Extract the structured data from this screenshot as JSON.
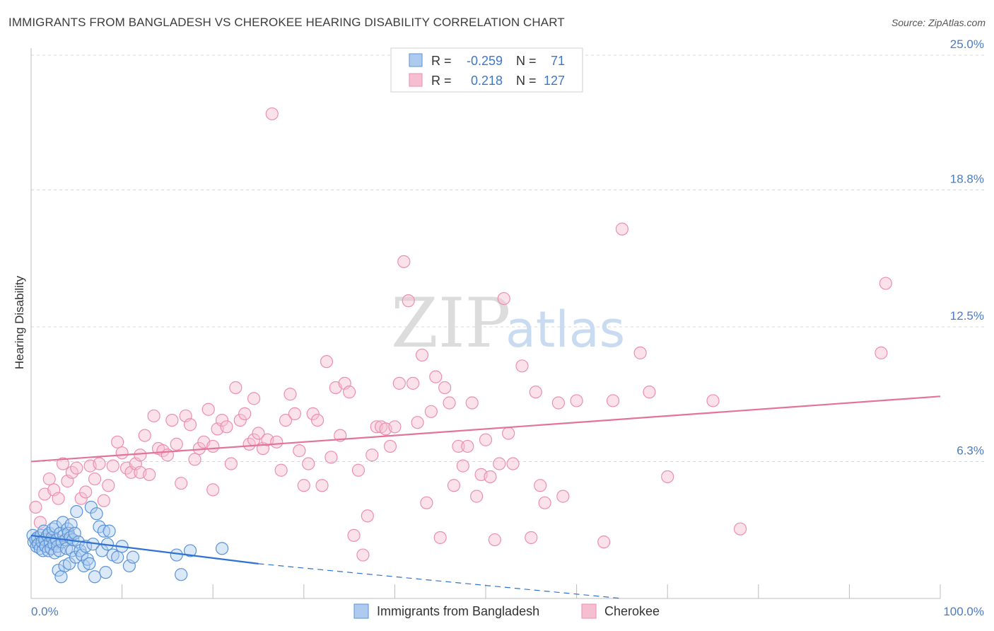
{
  "header": {
    "title": "IMMIGRANTS FROM BANGLADESH VS CHEROKEE HEARING DISABILITY CORRELATION CHART",
    "source": "Source: ZipAtlas.com"
  },
  "watermark": {
    "zip": "ZIP",
    "atlas": "atlas"
  },
  "stats": {
    "r_label": "R =",
    "n_label": "N =",
    "rows": [
      {
        "series": "Immigrants from Bangladesh",
        "r": "-0.259",
        "n": "71"
      },
      {
        "series": "Cherokee",
        "r": "0.218",
        "n": "127"
      }
    ]
  },
  "colors": {
    "blue_fill": "#aecbef",
    "blue_stroke": "#5b93d6",
    "blue_line": "#2f72cf",
    "pink_fill": "#f6bfd1",
    "pink_stroke": "#eb8fae",
    "pink_line": "#e2739a",
    "grid": "#d8d8d8"
  },
  "chart_data": {
    "type": "scatter",
    "title": "IMMIGRANTS FROM BANGLADESH VS CHEROKEE HEARING DISABILITY CORRELATION CHART",
    "xlabel": "",
    "ylabel": "Hearing Disability",
    "xlim": [
      0,
      100
    ],
    "ylim": [
      0,
      25.0
    ],
    "x_tick_labels": [
      "0.0%",
      "100.0%"
    ],
    "y_ticks": [
      6.3,
      12.5,
      18.8,
      25.0
    ],
    "y_tick_labels": [
      "6.3%",
      "12.5%",
      "18.8%",
      "25.0%"
    ],
    "legend": [
      "Immigrants from Bangladesh",
      "Cherokee"
    ],
    "series": [
      {
        "name": "Immigrants from Bangladesh",
        "trend": {
          "x": [
            0,
            25
          ],
          "y": [
            2.9,
            1.6
          ],
          "dashed_to": [
            65,
            0.0
          ]
        },
        "points": [
          [
            0.2,
            2.9
          ],
          [
            0.3,
            2.6
          ],
          [
            0.5,
            2.7
          ],
          [
            0.6,
            2.4
          ],
          [
            0.7,
            2.8
          ],
          [
            0.8,
            2.5
          ],
          [
            1.0,
            2.3
          ],
          [
            1.1,
            2.9
          ],
          [
            1.2,
            2.6
          ],
          [
            1.3,
            2.2
          ],
          [
            1.4,
            3.1
          ],
          [
            1.5,
            2.7
          ],
          [
            1.6,
            2.4
          ],
          [
            1.8,
            2.9
          ],
          [
            1.9,
            2.2
          ],
          [
            2.0,
            3.0
          ],
          [
            2.1,
            2.6
          ],
          [
            2.2,
            2.3
          ],
          [
            2.3,
            2.8
          ],
          [
            2.4,
            3.2
          ],
          [
            2.5,
            2.5
          ],
          [
            2.6,
            2.1
          ],
          [
            2.7,
            3.3
          ],
          [
            2.8,
            2.7
          ],
          [
            2.9,
            2.4
          ],
          [
            3.0,
            1.3
          ],
          [
            3.1,
            2.2
          ],
          [
            3.2,
            3.0
          ],
          [
            3.3,
            1.0
          ],
          [
            3.4,
            2.6
          ],
          [
            3.5,
            3.5
          ],
          [
            3.6,
            2.9
          ],
          [
            3.7,
            1.5
          ],
          [
            3.8,
            2.7
          ],
          [
            3.9,
            2.3
          ],
          [
            4.0,
            3.2
          ],
          [
            4.1,
            3.0
          ],
          [
            4.2,
            1.6
          ],
          [
            4.3,
            2.8
          ],
          [
            4.4,
            3.4
          ],
          [
            4.5,
            2.2
          ],
          [
            4.6,
            2.7
          ],
          [
            4.8,
            3.0
          ],
          [
            4.9,
            1.9
          ],
          [
            5.0,
            4.0
          ],
          [
            5.2,
            2.6
          ],
          [
            5.4,
            2.2
          ],
          [
            5.6,
            2.0
          ],
          [
            5.8,
            1.5
          ],
          [
            6.0,
            2.4
          ],
          [
            6.2,
            1.8
          ],
          [
            6.4,
            1.6
          ],
          [
            6.6,
            4.2
          ],
          [
            6.8,
            2.5
          ],
          [
            7.0,
            1.0
          ],
          [
            7.2,
            3.9
          ],
          [
            7.5,
            3.3
          ],
          [
            7.8,
            2.2
          ],
          [
            8.0,
            3.1
          ],
          [
            8.2,
            1.2
          ],
          [
            8.4,
            2.5
          ],
          [
            8.6,
            3.1
          ],
          [
            9.0,
            2.0
          ],
          [
            9.5,
            1.9
          ],
          [
            10.0,
            2.4
          ],
          [
            10.8,
            1.5
          ],
          [
            11.2,
            1.9
          ],
          [
            16.0,
            2.0
          ],
          [
            16.5,
            1.1
          ],
          [
            17.5,
            2.2
          ],
          [
            21.0,
            2.3
          ]
        ]
      },
      {
        "name": "Cherokee",
        "trend": {
          "x": [
            0,
            100
          ],
          "y": [
            6.3,
            9.3
          ]
        },
        "points": [
          [
            0.5,
            4.2
          ],
          [
            1.0,
            3.5
          ],
          [
            1.5,
            4.8
          ],
          [
            2.0,
            5.5
          ],
          [
            2.5,
            5.0
          ],
          [
            3.0,
            4.6
          ],
          [
            3.5,
            6.2
          ],
          [
            4.0,
            5.4
          ],
          [
            4.5,
            5.8
          ],
          [
            5.0,
            6.0
          ],
          [
            5.5,
            4.6
          ],
          [
            6.0,
            4.9
          ],
          [
            6.5,
            6.1
          ],
          [
            7.0,
            5.5
          ],
          [
            7.5,
            6.2
          ],
          [
            8.0,
            4.5
          ],
          [
            8.5,
            5.2
          ],
          [
            9.0,
            6.1
          ],
          [
            9.5,
            7.2
          ],
          [
            10.0,
            6.7
          ],
          [
            10.5,
            6.0
          ],
          [
            11.0,
            5.8
          ],
          [
            11.5,
            6.2
          ],
          [
            12.0,
            5.8
          ],
          [
            12.5,
            7.5
          ],
          [
            13.0,
            5.7
          ],
          [
            13.5,
            8.4
          ],
          [
            14.0,
            6.9
          ],
          [
            14.5,
            6.8
          ],
          [
            15.0,
            6.6
          ],
          [
            15.5,
            8.2
          ],
          [
            16.0,
            7.1
          ],
          [
            16.5,
            5.3
          ],
          [
            17.0,
            8.4
          ],
          [
            17.5,
            8.0
          ],
          [
            18.0,
            6.4
          ],
          [
            18.5,
            6.9
          ],
          [
            19.0,
            7.2
          ],
          [
            19.5,
            8.7
          ],
          [
            20.0,
            5.0
          ],
          [
            20.5,
            7.8
          ],
          [
            21.0,
            8.2
          ],
          [
            21.5,
            7.9
          ],
          [
            22.0,
            6.2
          ],
          [
            22.5,
            9.7
          ],
          [
            23.0,
            8.2
          ],
          [
            23.5,
            8.5
          ],
          [
            24.0,
            7.1
          ],
          [
            24.5,
            7.3
          ],
          [
            25.0,
            7.6
          ],
          [
            25.5,
            6.9
          ],
          [
            26.0,
            7.3
          ],
          [
            26.5,
            22.3
          ],
          [
            27.0,
            7.2
          ],
          [
            27.5,
            5.9
          ],
          [
            28.0,
            8.2
          ],
          [
            28.5,
            9.4
          ],
          [
            29.0,
            8.5
          ],
          [
            29.5,
            6.8
          ],
          [
            30.0,
            5.2
          ],
          [
            30.5,
            6.2
          ],
          [
            31.0,
            8.5
          ],
          [
            31.5,
            8.2
          ],
          [
            32.0,
            5.2
          ],
          [
            32.5,
            10.9
          ],
          [
            33.0,
            6.5
          ],
          [
            33.5,
            9.7
          ],
          [
            34.0,
            7.5
          ],
          [
            34.5,
            9.9
          ],
          [
            35.0,
            9.5
          ],
          [
            35.5,
            2.9
          ],
          [
            36.0,
            5.9
          ],
          [
            36.5,
            2.0
          ],
          [
            37.0,
            3.8
          ],
          [
            37.5,
            6.6
          ],
          [
            38.0,
            7.9
          ],
          [
            38.5,
            7.9
          ],
          [
            39.0,
            7.8
          ],
          [
            39.5,
            7.0
          ],
          [
            40.0,
            7.9
          ],
          [
            40.5,
            9.9
          ],
          [
            41.0,
            15.5
          ],
          [
            41.5,
            13.7
          ],
          [
            42.0,
            9.9
          ],
          [
            42.5,
            8.1
          ],
          [
            43.0,
            11.2
          ],
          [
            43.5,
            4.4
          ],
          [
            44.0,
            8.6
          ],
          [
            44.5,
            10.2
          ],
          [
            45.0,
            2.8
          ],
          [
            45.5,
            9.7
          ],
          [
            46.0,
            9.0
          ],
          [
            46.5,
            5.2
          ],
          [
            47.0,
            7.0
          ],
          [
            47.5,
            6.1
          ],
          [
            48.0,
            7.0
          ],
          [
            48.5,
            9.0
          ],
          [
            49.0,
            4.7
          ],
          [
            49.5,
            5.7
          ],
          [
            50.0,
            7.3
          ],
          [
            50.5,
            5.6
          ],
          [
            51.0,
            2.7
          ],
          [
            51.5,
            6.2
          ],
          [
            52.0,
            13.8
          ],
          [
            52.5,
            7.6
          ],
          [
            53.0,
            6.2
          ],
          [
            54.0,
            10.7
          ],
          [
            55.0,
            2.8
          ],
          [
            55.5,
            9.5
          ],
          [
            56.0,
            5.2
          ],
          [
            56.5,
            4.4
          ],
          [
            58.0,
            9.0
          ],
          [
            58.5,
            4.7
          ],
          [
            60.0,
            9.1
          ],
          [
            63.0,
            2.6
          ],
          [
            64.0,
            9.1
          ],
          [
            65.0,
            17.0
          ],
          [
            67.0,
            11.3
          ],
          [
            68.0,
            9.5
          ],
          [
            70.0,
            5.6
          ],
          [
            75.0,
            9.1
          ],
          [
            78.0,
            3.2
          ],
          [
            93.5,
            11.3
          ],
          [
            94.0,
            14.5
          ],
          [
            24.5,
            9.2
          ],
          [
            12.0,
            6.6
          ],
          [
            20.0,
            7.0
          ]
        ]
      }
    ]
  },
  "x_axis": {
    "left_label": "0.0%",
    "right_label": "100.0%"
  },
  "legend": {
    "items": [
      {
        "label": "Immigrants from Bangladesh"
      },
      {
        "label": "Cherokee"
      }
    ]
  }
}
